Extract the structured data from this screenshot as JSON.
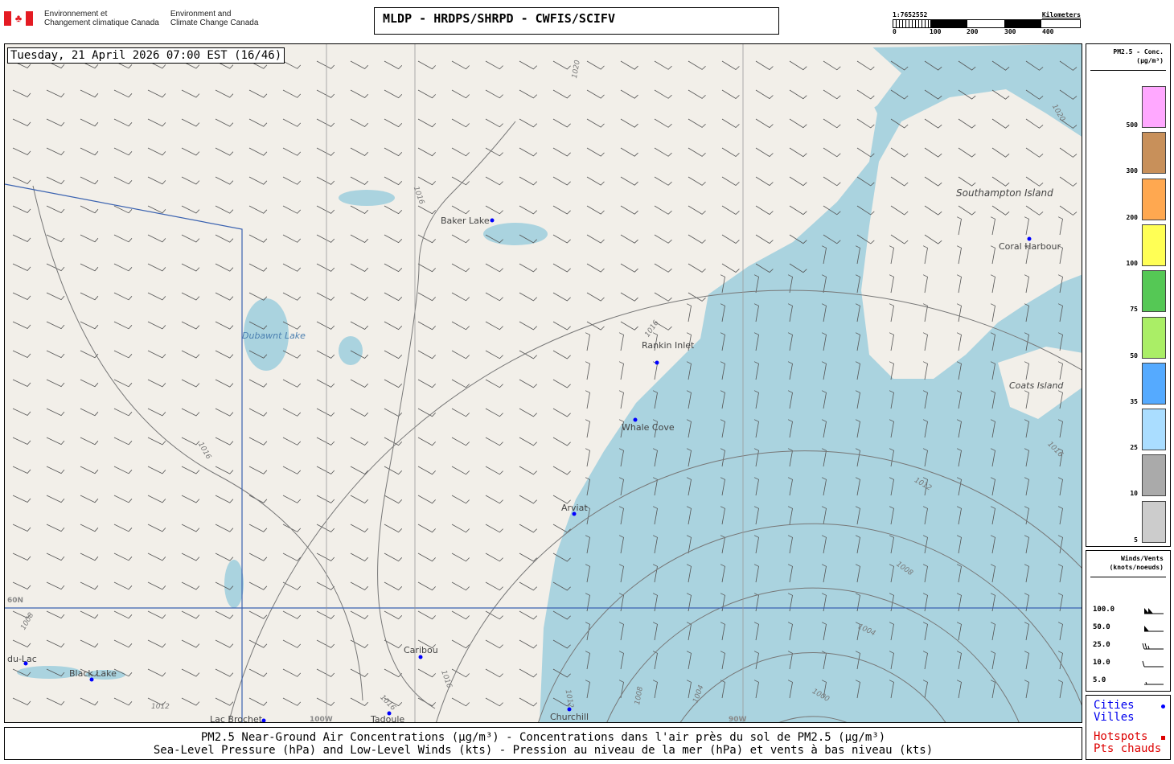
{
  "header": {
    "agency_fr": [
      "Environnement et",
      "Changement climatique Canada"
    ],
    "agency_en": [
      "Environment and",
      "Climate Change Canada"
    ],
    "title": "MLDP - HRDPS/SHRPD - CWFIS/SCIFV"
  },
  "scale": {
    "ratio": "1:7652552",
    "unit": "Kilometers",
    "ticks": [
      "0",
      "100",
      "200",
      "300",
      "400"
    ]
  },
  "map": {
    "datetime": "Tuesday, 21 April 2026 07:00 EST (16/46)",
    "cities": [
      {
        "name": "Baker Lake"
      },
      {
        "name": "Rankin Inlet"
      },
      {
        "name": "Whale Cove"
      },
      {
        "name": "Arviat"
      },
      {
        "name": "Coral Harbour"
      },
      {
        "name": "Caribou"
      },
      {
        "name": "Churchill"
      },
      {
        "name": "Tadoule"
      },
      {
        "name": "Lac Brochet"
      },
      {
        "name": "Black Lake"
      },
      {
        "name": "du-Lac"
      }
    ],
    "places": [
      "Southampton Island",
      "Coats Island",
      "Dubawnt Lake"
    ],
    "grid_labels": [
      "60N",
      "100W",
      "90W"
    ],
    "isobar_labels": [
      "1020",
      "1020",
      "1016",
      "1016",
      "1016",
      "1012",
      "1012",
      "1008",
      "1004",
      "1000",
      "1004",
      "1008",
      "1008",
      "1016",
      "1016",
      "1016",
      "1012"
    ],
    "colors": {
      "land": "#f2efe9",
      "water": "#aad3df",
      "boundary": "#3a62b0",
      "city": "#0000ff",
      "hotspot": "#dd0000"
    }
  },
  "pm_legend": {
    "title": "PM2.5 - Conc.",
    "units": "(µg/m³)",
    "levels": [
      {
        "label": "500",
        "color": "#ffa8ff"
      },
      {
        "label": "300",
        "color": "#c8905a"
      },
      {
        "label": "200",
        "color": "#ffa850"
      },
      {
        "label": "100",
        "color": "#ffff55"
      },
      {
        "label": "75",
        "color": "#55c855"
      },
      {
        "label": "50",
        "color": "#aaee66"
      },
      {
        "label": "35",
        "color": "#55aaff"
      },
      {
        "label": "25",
        "color": "#aaddff"
      },
      {
        "label": "10",
        "color": "#aaaaaa"
      },
      {
        "label": "5",
        "color": "#cccccc"
      }
    ]
  },
  "wind_legend": {
    "title": "Winds/Vents",
    "units": "(knots/noeuds)",
    "speeds": [
      "100.0",
      "50.0",
      "25.0",
      "10.0",
      "5.0"
    ]
  },
  "symbol_legend": {
    "cities": "Cities",
    "villes": "Villes",
    "hotspots": "Hotspots",
    "pts": "Pts chauds"
  },
  "caption": {
    "line1": "PM2.5 Near-Ground Air Concentrations (µg/m³) - Concentrations dans l'air près du sol de PM2.5 (µg/m³)",
    "line2": "Sea-Level Pressure (hPa) and Low-Level Winds (kts) - Pression au niveau de la mer (hPa) et vents à bas niveau (kts)"
  }
}
